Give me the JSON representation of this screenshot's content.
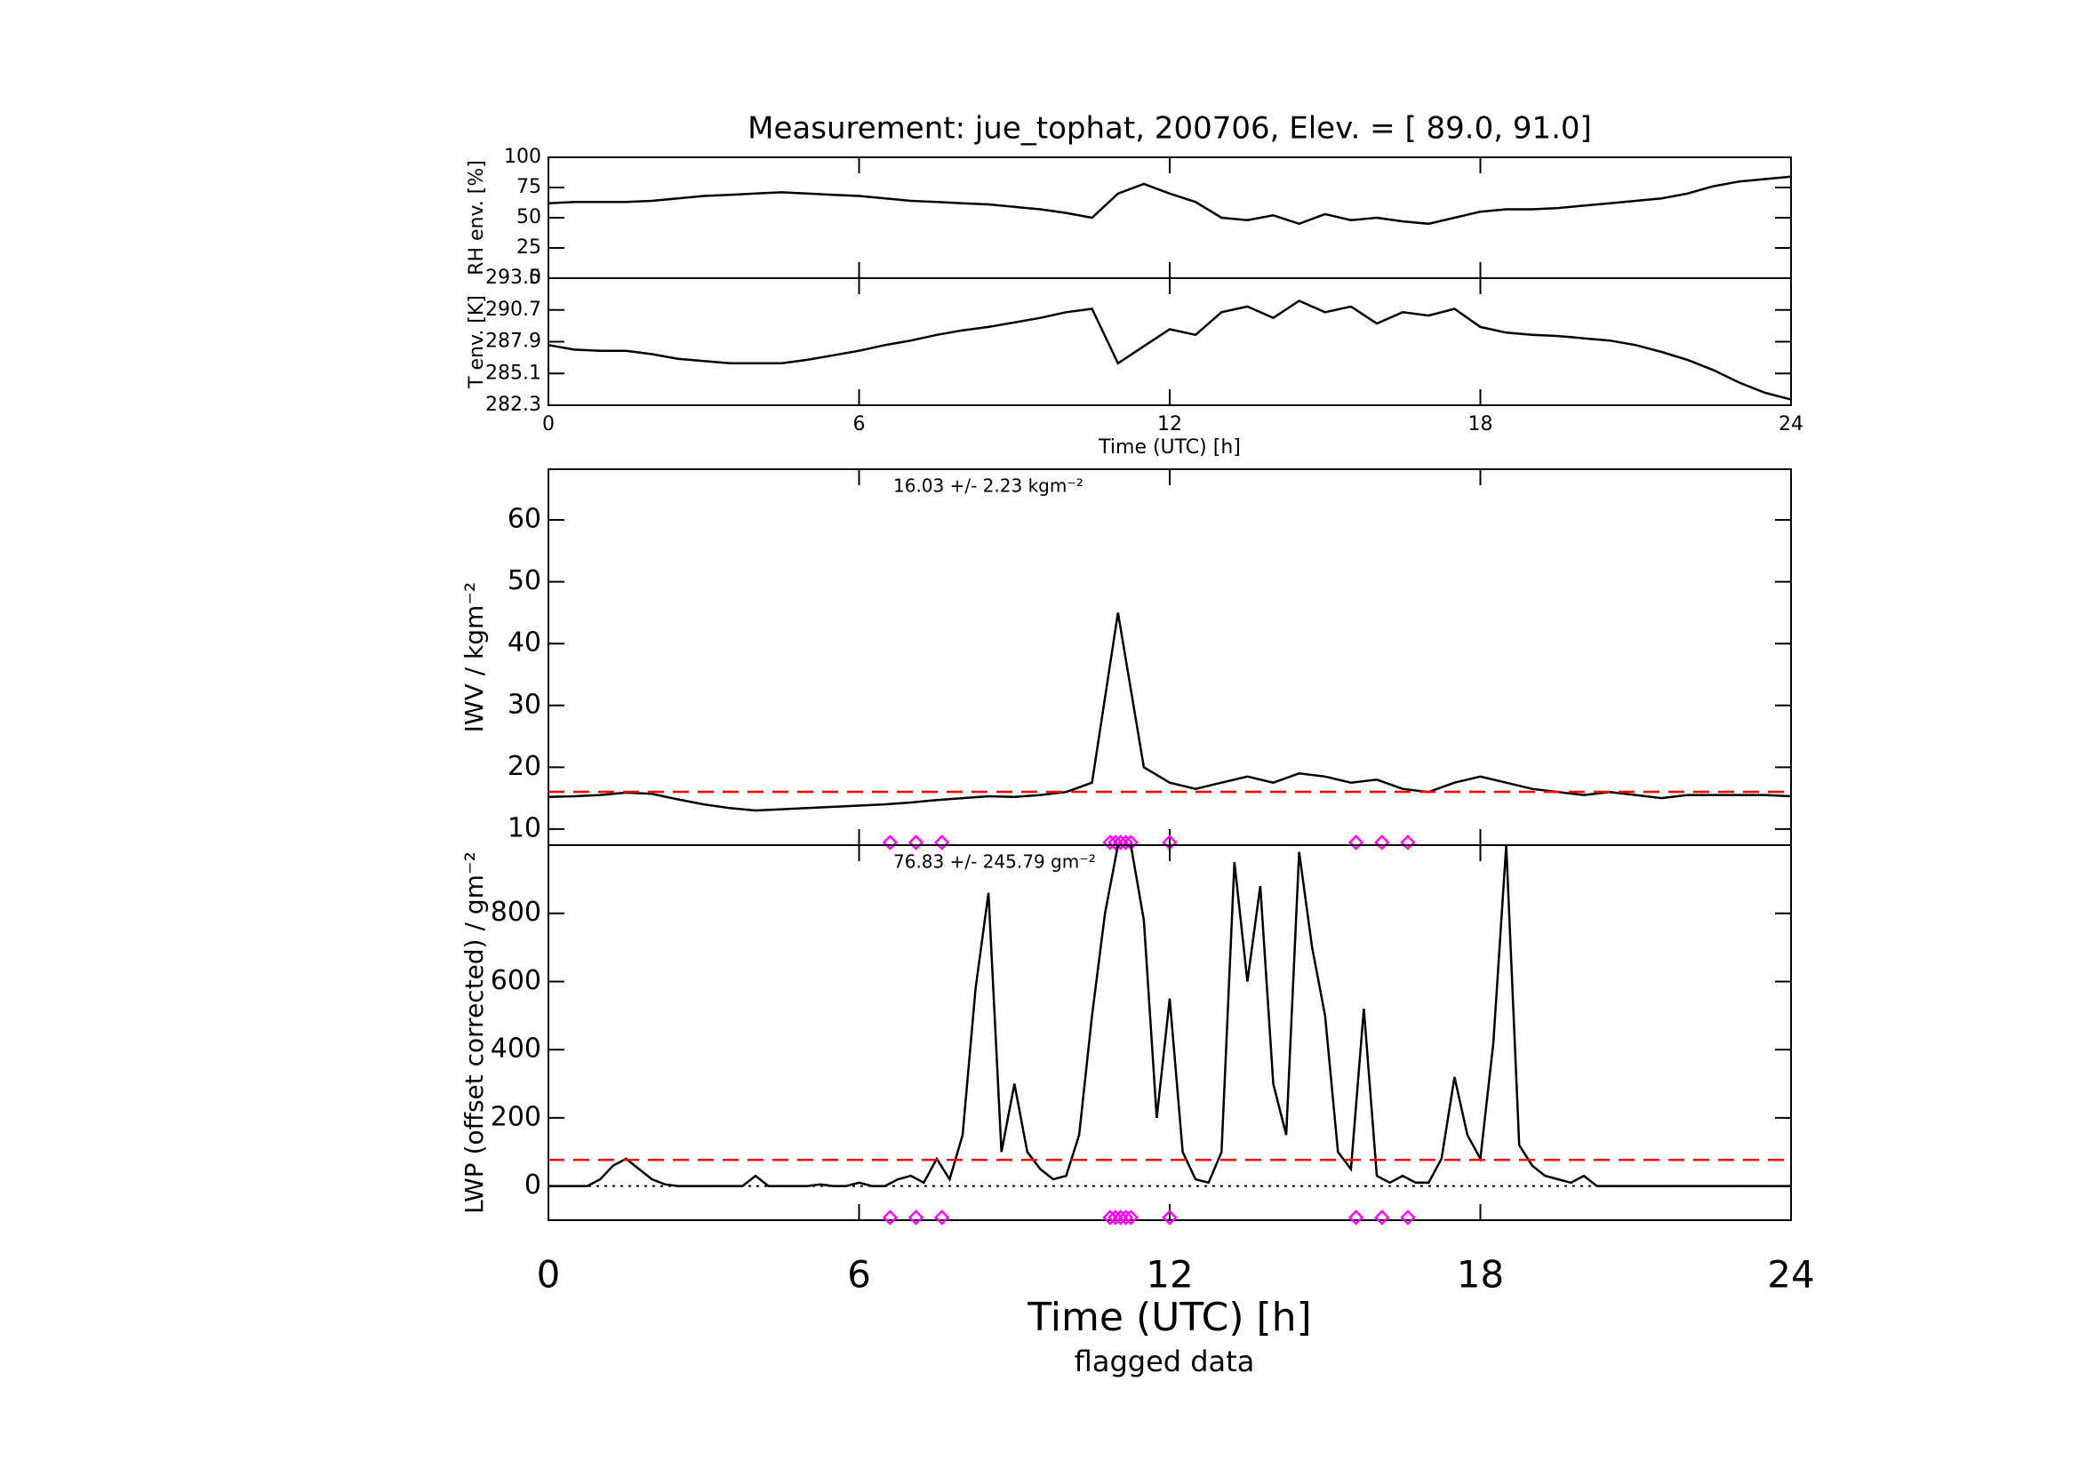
{
  "title": "Measurement: jue_tophat, 200706, Elev. = [ 89.0,  91.0]",
  "flagged": {
    "label": "flagged data",
    "color": "#ff00ff",
    "x": [
      6.6,
      7.1,
      7.6,
      10.85,
      10.95,
      11.05,
      11.15,
      11.25,
      12.0,
      15.6,
      16.1,
      16.6
    ]
  },
  "chart_data": [
    {
      "type": "line",
      "ylabel": "RH env. [%]",
      "xlim": [
        0,
        24
      ],
      "xticks": [
        0,
        6,
        12,
        18,
        24
      ],
      "ylim": [
        0,
        100
      ],
      "yticks": [
        0,
        25,
        50,
        75,
        100
      ],
      "x": [
        0,
        0.5,
        1,
        1.5,
        2,
        2.5,
        3,
        3.5,
        4,
        4.5,
        5,
        5.5,
        6,
        6.5,
        7,
        7.5,
        8,
        8.5,
        9,
        9.5,
        10,
        10.5,
        11,
        11.5,
        12,
        12.5,
        13,
        13.5,
        14,
        14.5,
        15,
        15.5,
        16,
        16.5,
        17,
        17.5,
        18,
        18.5,
        19,
        19.5,
        20,
        20.5,
        21,
        21.5,
        22,
        22.5,
        23,
        23.5,
        24
      ],
      "series": [
        {
          "color": "#000000",
          "values": [
            62,
            63,
            63,
            63,
            64,
            66,
            68,
            69,
            70,
            71,
            70,
            69,
            68,
            66,
            64,
            63,
            62,
            61,
            59,
            57,
            54,
            50,
            70,
            78,
            70,
            63,
            50,
            48,
            52,
            45,
            53,
            48,
            50,
            47,
            45,
            50,
            55,
            57,
            57,
            58,
            60,
            62,
            64,
            66,
            70,
            76,
            80,
            82,
            84
          ]
        }
      ]
    },
    {
      "type": "line",
      "ylabel": "T env. [K]",
      "xlabel": "Time (UTC) [h]",
      "xlim": [
        0,
        24
      ],
      "xticks": [
        0,
        6,
        12,
        18,
        24
      ],
      "ylim": [
        282.3,
        293.5
      ],
      "yticks": [
        282.3,
        285.1,
        287.9,
        290.7,
        293.5
      ],
      "x": [
        0,
        0.5,
        1,
        1.5,
        2,
        2.5,
        3,
        3.5,
        4,
        4.5,
        5,
        5.5,
        6,
        6.5,
        7,
        7.5,
        8,
        8.5,
        9,
        9.5,
        10,
        10.5,
        11,
        11.5,
        12,
        12.5,
        13,
        13.5,
        14,
        14.5,
        15,
        15.5,
        16,
        16.5,
        17,
        17.5,
        18,
        18.5,
        19,
        19.5,
        20,
        20.5,
        21,
        21.5,
        22,
        22.5,
        23,
        23.5,
        24
      ],
      "series": [
        {
          "color": "#000000",
          "values": [
            287.6,
            287.2,
            287.1,
            287.1,
            286.8,
            286.4,
            286.2,
            286.0,
            286.0,
            286.0,
            286.3,
            286.7,
            287.1,
            287.6,
            288.0,
            288.5,
            288.9,
            289.2,
            289.6,
            290.0,
            290.5,
            290.8,
            286.0,
            287.5,
            289.0,
            288.5,
            290.5,
            291.0,
            290.0,
            291.5,
            290.5,
            291.0,
            289.5,
            290.5,
            290.2,
            290.8,
            289.2,
            288.7,
            288.5,
            288.4,
            288.2,
            288.0,
            287.6,
            287.0,
            286.3,
            285.4,
            284.3,
            283.4,
            282.8
          ]
        }
      ]
    },
    {
      "type": "line",
      "ylabel": "IWV / kgm⁻²",
      "xlim": [
        0,
        24
      ],
      "xticks": [
        0,
        6,
        12,
        18,
        24
      ],
      "ylim": [
        7.4,
        68.2
      ],
      "yticks": [
        10,
        20,
        30,
        40,
        50,
        60
      ],
      "mean": {
        "value": 16.03,
        "label": "16.03 +/-   2.23 kgm⁻²",
        "color": "#ff0000"
      },
      "x": [
        0,
        0.5,
        1,
        1.5,
        2,
        2.5,
        3,
        3.5,
        4,
        4.5,
        5,
        5.5,
        6,
        6.5,
        7,
        7.5,
        8,
        8.5,
        9,
        9.5,
        10,
        10.5,
        11,
        11.5,
        12,
        12.5,
        13,
        13.5,
        14,
        14.5,
        15,
        15.5,
        16,
        16.5,
        17,
        17.5,
        18,
        18.5,
        19,
        19.5,
        20,
        20.5,
        21,
        21.5,
        22,
        22.5,
        23,
        23.5,
        24
      ],
      "series": [
        {
          "color": "#000000",
          "values": [
            15.2,
            15.3,
            15.5,
            15.9,
            15.7,
            14.8,
            14.0,
            13.4,
            13.0,
            13.2,
            13.4,
            13.6,
            13.8,
            14.0,
            14.3,
            14.7,
            15.0,
            15.3,
            15.2,
            15.5,
            16.0,
            17.5,
            45.0,
            20.0,
            17.5,
            16.5,
            17.5,
            18.5,
            17.5,
            19.0,
            18.5,
            17.5,
            18.0,
            16.5,
            16.0,
            17.5,
            18.5,
            17.5,
            16.5,
            16.0,
            15.5,
            16.0,
            15.5,
            15.0,
            15.5,
            15.5,
            15.5,
            15.5,
            15.3
          ]
        }
      ]
    },
    {
      "type": "line",
      "ylabel": "LWP (offset corrected) / gm⁻²",
      "xlabel": "Time (UTC) [h]",
      "xlim": [
        0,
        24
      ],
      "xticks": [
        0,
        6,
        12,
        18,
        24
      ],
      "ylim": [
        -100,
        1000
      ],
      "yticks": [
        0,
        200,
        400,
        600,
        800
      ],
      "mean": {
        "value": 76.83,
        "label": "76.83 +/- 245.79 gm⁻²",
        "color": "#ff0000"
      },
      "baseline": 0,
      "x": [
        0,
        0.25,
        0.5,
        0.75,
        1,
        1.25,
        1.5,
        1.75,
        2,
        2.25,
        2.5,
        2.75,
        3,
        3.25,
        3.5,
        3.75,
        4,
        4.25,
        4.5,
        4.75,
        5,
        5.25,
        5.5,
        5.75,
        6,
        6.25,
        6.5,
        6.75,
        7,
        7.25,
        7.5,
        7.75,
        8,
        8.25,
        8.5,
        8.75,
        9,
        9.25,
        9.5,
        9.75,
        10,
        10.25,
        10.5,
        10.75,
        11,
        11.25,
        11.5,
        11.75,
        12,
        12.25,
        12.5,
        12.75,
        13,
        13.25,
        13.5,
        13.75,
        14,
        14.25,
        14.5,
        14.75,
        15,
        15.25,
        15.5,
        15.75,
        16,
        16.25,
        16.5,
        16.75,
        17,
        17.25,
        17.5,
        17.75,
        18,
        18.25,
        18.5,
        18.75,
        19,
        19.25,
        19.5,
        19.75,
        20,
        20.25,
        20.5,
        20.75,
        21,
        21.25,
        21.5,
        21.75,
        22,
        22.25,
        22.5,
        22.75,
        23,
        23.25,
        23.5,
        23.75,
        24
      ],
      "series": [
        {
          "color": "#000000",
          "values": [
            0,
            0,
            0,
            0,
            20,
            60,
            80,
            50,
            20,
            5,
            0,
            0,
            0,
            0,
            0,
            0,
            30,
            0,
            0,
            0,
            0,
            5,
            0,
            0,
            10,
            0,
            0,
            20,
            30,
            10,
            80,
            20,
            150,
            580,
            860,
            100,
            300,
            100,
            50,
            20,
            30,
            150,
            500,
            800,
            1000,
            1000,
            780,
            200,
            550,
            100,
            20,
            10,
            100,
            950,
            600,
            880,
            300,
            150,
            980,
            700,
            500,
            100,
            50,
            520,
            30,
            10,
            30,
            10,
            10,
            80,
            320,
            150,
            80,
            420,
            1000,
            120,
            60,
            30,
            20,
            10,
            30,
            0,
            0,
            0,
            0,
            0,
            0,
            0,
            0,
            0,
            0,
            0,
            0,
            0,
            0,
            0,
            0
          ]
        }
      ]
    }
  ]
}
